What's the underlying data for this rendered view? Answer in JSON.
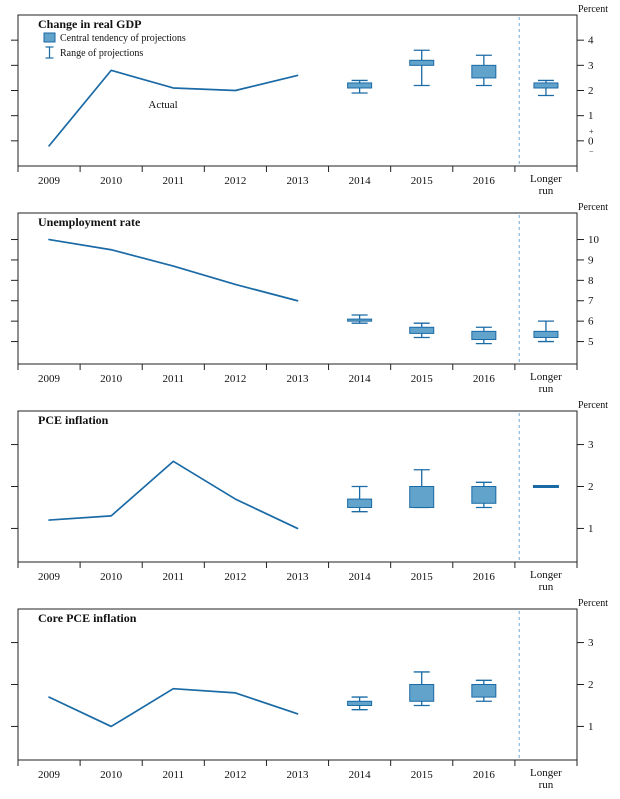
{
  "unit_label": "Percent",
  "legend": {
    "central_tendency_label": "Central tendency of projections",
    "range_label": "Range of projections"
  },
  "zero_markers": {
    "plus": "+",
    "minus": "−"
  },
  "x_axis": {
    "categories": [
      "2009",
      "2010",
      "2011",
      "2012",
      "2013",
      "2014",
      "2015",
      "2016"
    ],
    "longer_run": [
      "Longer",
      "run"
    ]
  },
  "colors": {
    "line": "#1a6aa5",
    "box_fill": "#62a3cc",
    "box_stroke": "#1a6aa5",
    "dashed_line": "#76a9d3",
    "axis": "#222222",
    "text": "#111111"
  },
  "chart_data": [
    {
      "type": "line+box",
      "title": "Change in real GDP",
      "ylabel": "Percent",
      "ylim": [
        -1,
        5
      ],
      "yticks": [
        4,
        3,
        2,
        1,
        0
      ],
      "zero_plus_minus": true,
      "legend": true,
      "annotation": {
        "text": "Actual",
        "x_slot": 2.1,
        "y": 1.3
      },
      "actual": {
        "x": [
          "2009",
          "2010",
          "2011",
          "2012",
          "2013"
        ],
        "values": [
          -0.2,
          2.8,
          2.1,
          2.0,
          2.6
        ]
      },
      "projections": [
        {
          "x": "2014",
          "central_tendency": [
            2.1,
            2.3
          ],
          "range": [
            1.9,
            2.4
          ]
        },
        {
          "x": "2015",
          "central_tendency": [
            3.0,
            3.2
          ],
          "range": [
            2.2,
            3.6
          ]
        },
        {
          "x": "2016",
          "central_tendency": [
            2.5,
            3.0
          ],
          "range": [
            2.2,
            3.4
          ]
        },
        {
          "x": "Longer run",
          "central_tendency": [
            2.1,
            2.3
          ],
          "range": [
            1.8,
            2.4
          ]
        }
      ]
    },
    {
      "type": "line+box",
      "title": "Unemployment rate",
      "ylabel": "Percent",
      "ylim": [
        3.9,
        11.3
      ],
      "yticks": [
        10,
        9,
        8,
        7,
        6,
        5
      ],
      "zero_plus_minus": false,
      "legend": false,
      "actual": {
        "x": [
          "2009",
          "2010",
          "2011",
          "2012",
          "2013"
        ],
        "values": [
          10.0,
          9.5,
          8.7,
          7.8,
          7.0
        ]
      },
      "projections": [
        {
          "x": "2014",
          "central_tendency": [
            6.0,
            6.1
          ],
          "range": [
            5.9,
            6.3
          ]
        },
        {
          "x": "2015",
          "central_tendency": [
            5.4,
            5.7
          ],
          "range": [
            5.2,
            5.9
          ]
        },
        {
          "x": "2016",
          "central_tendency": [
            5.1,
            5.5
          ],
          "range": [
            4.9,
            5.7
          ]
        },
        {
          "x": "Longer run",
          "central_tendency": [
            5.2,
            5.5
          ],
          "range": [
            5.0,
            6.0
          ]
        }
      ]
    },
    {
      "type": "line+box",
      "title": "PCE inflation",
      "ylabel": "Percent",
      "ylim": [
        0.2,
        3.8
      ],
      "yticks": [
        3,
        2,
        1
      ],
      "zero_plus_minus": false,
      "legend": false,
      "actual": {
        "x": [
          "2009",
          "2010",
          "2011",
          "2012",
          "2013"
        ],
        "values": [
          1.2,
          1.3,
          2.6,
          1.7,
          1.0
        ]
      },
      "projections": [
        {
          "x": "2014",
          "central_tendency": [
            1.5,
            1.7
          ],
          "range": [
            1.4,
            2.0
          ]
        },
        {
          "x": "2015",
          "central_tendency": [
            1.5,
            2.0
          ],
          "range": [
            1.5,
            2.4
          ]
        },
        {
          "x": "2016",
          "central_tendency": [
            1.6,
            2.0
          ],
          "range": [
            1.5,
            2.1
          ]
        },
        {
          "x": "Longer run",
          "central_tendency": [
            2.0,
            2.0
          ],
          "range": [
            2.0,
            2.0
          ],
          "point": true
        }
      ]
    },
    {
      "type": "line+box",
      "title": "Core PCE inflation",
      "ylabel": "Percent",
      "ylim": [
        0.2,
        3.8
      ],
      "yticks": [
        3,
        2,
        1
      ],
      "zero_plus_minus": false,
      "legend": false,
      "actual": {
        "x": [
          "2009",
          "2010",
          "2011",
          "2012",
          "2013"
        ],
        "values": [
          1.7,
          1.0,
          1.9,
          1.8,
          1.3
        ]
      },
      "projections": [
        {
          "x": "2014",
          "central_tendency": [
            1.5,
            1.6
          ],
          "range": [
            1.4,
            1.7
          ]
        },
        {
          "x": "2015",
          "central_tendency": [
            1.6,
            2.0
          ],
          "range": [
            1.5,
            2.3
          ]
        },
        {
          "x": "2016",
          "central_tendency": [
            1.7,
            2.0
          ],
          "range": [
            1.6,
            2.1
          ]
        }
      ]
    }
  ]
}
